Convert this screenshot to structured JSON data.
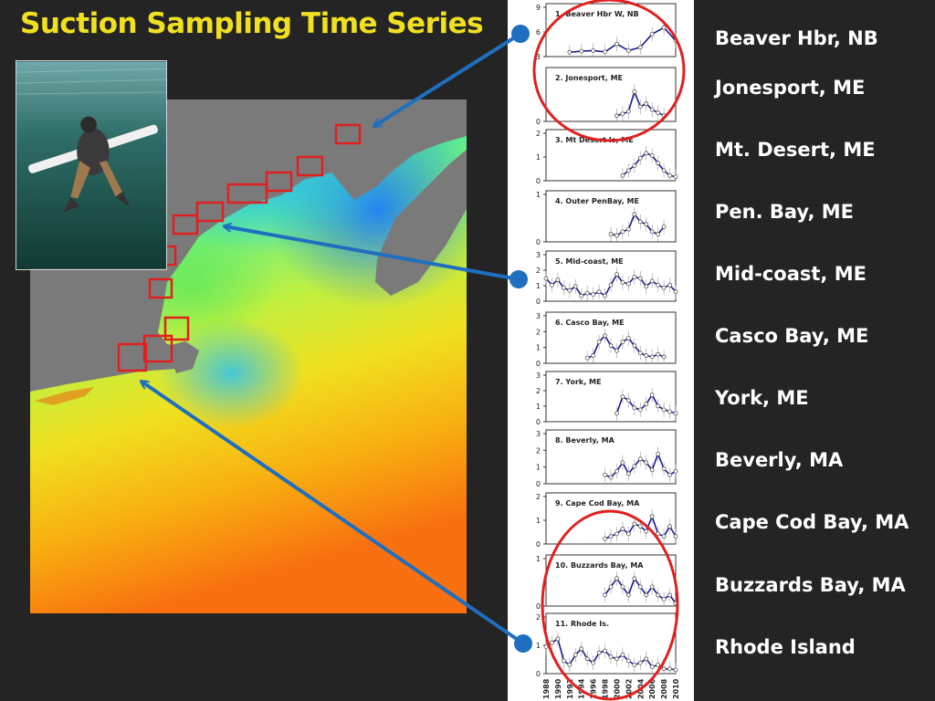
{
  "title": "Suction Sampling Time Series",
  "colors": {
    "background": "#242424",
    "title": "#f0e020",
    "series_line": "#1a1a8c",
    "highlight_ellipse": "#e02020",
    "arrow": "#1f6fc0",
    "site_box": "#e02020"
  },
  "sites": [
    "Beaver Hbr, NB",
    "Jonesport, ME",
    "Mt. Desert, ME",
    "Pen. Bay, ME",
    "Mid-coast, ME",
    "Casco Bay, ME",
    "York, ME",
    "Beverly, MA",
    "Cape Cod Bay, MA",
    "Buzzards Bay, MA",
    "Rhode Island"
  ],
  "chart_data": [
    {
      "type": "line",
      "title": "1. Beaver Hbr W, NB",
      "yticks": [
        "9",
        "6",
        "3"
      ],
      "x": [
        1992,
        1994,
        1996,
        1998,
        2000,
        2002,
        2004,
        2006,
        2008,
        2010
      ],
      "values": [
        0.5,
        0.8,
        1.0,
        0.6,
        3.0,
        1.0,
        2.0,
        6.0,
        8.0,
        4.0
      ]
    },
    {
      "type": "line",
      "title": "2. Jonesport, ME",
      "yticks": [
        "0"
      ],
      "x": [
        2000,
        2001,
        2002,
        2003,
        2004,
        2005,
        2006,
        2007,
        2008
      ],
      "values": [
        0.5,
        0.8,
        1.2,
        4.5,
        2.0,
        2.5,
        1.5,
        1.0,
        0.5
      ]
    },
    {
      "type": "line",
      "title": "3. Mt Desert Is, ME",
      "yticks": [
        "2",
        "1",
        "0"
      ],
      "x": [
        2001,
        2002,
        2003,
        2004,
        2005,
        2006,
        2007,
        2008,
        2009,
        2010
      ],
      "values": [
        0.1,
        0.3,
        0.5,
        0.8,
        1.0,
        0.9,
        0.6,
        0.3,
        0.1,
        0.05
      ]
    },
    {
      "type": "line",
      "title": "4. Outer PenBay, ME",
      "yticks": [
        "1",
        "0"
      ],
      "x": [
        1999,
        2000,
        2001,
        2002,
        2003,
        2004,
        2005,
        2006,
        2007,
        2008
      ],
      "values": [
        0.2,
        0.15,
        0.3,
        0.4,
        1.0,
        0.7,
        0.6,
        0.3,
        0.2,
        0.5
      ]
    },
    {
      "type": "line",
      "title": "5. Mid-coast, ME",
      "yticks": [
        "3",
        "2",
        "1",
        "0"
      ],
      "x": [
        1988,
        1989,
        1990,
        1991,
        1992,
        1993,
        1994,
        1995,
        1996,
        1997,
        1998,
        1999,
        2000,
        2001,
        2002,
        2003,
        2004,
        2005,
        2006,
        2007,
        2008,
        2009,
        2010
      ],
      "values": [
        1.5,
        1.0,
        1.4,
        0.8,
        0.6,
        0.9,
        0.2,
        0.4,
        0.3,
        0.5,
        0.2,
        1.0,
        1.8,
        1.2,
        1.1,
        1.6,
        1.5,
        0.9,
        1.3,
        1.0,
        0.8,
        1.0,
        0.5
      ]
    },
    {
      "type": "line",
      "title": "6. Casco Bay, ME",
      "yticks": [
        "3",
        "2",
        "1",
        "0"
      ],
      "x": [
        1995,
        1996,
        1997,
        1998,
        1999,
        2000,
        2001,
        2002,
        2003,
        2004,
        2005,
        2006,
        2007,
        2008
      ],
      "values": [
        0.2,
        0.4,
        1.5,
        2.0,
        1.2,
        0.8,
        1.5,
        1.8,
        1.2,
        0.6,
        0.4,
        0.3,
        0.5,
        0.3
      ]
    },
    {
      "type": "line",
      "title": "7. York, ME",
      "yticks": [
        "3",
        "2",
        "1",
        "0"
      ],
      "x": [
        2000,
        2001,
        2002,
        2003,
        2004,
        2005,
        2006,
        2007,
        2008,
        2009,
        2010
      ],
      "values": [
        0.3,
        1.2,
        1.0,
        0.6,
        0.5,
        0.8,
        1.3,
        0.7,
        0.5,
        0.4,
        0.3
      ]
    },
    {
      "type": "line",
      "title": "8. Beverly, MA",
      "yticks": [
        "3",
        "2",
        "1",
        "0"
      ],
      "x": [
        1998,
        1999,
        2000,
        2001,
        2002,
        2003,
        2004,
        2005,
        2006,
        2007,
        2008,
        2009,
        2010
      ],
      "values": [
        0.5,
        0.3,
        0.8,
        1.5,
        0.6,
        1.2,
        1.8,
        1.5,
        0.9,
        2.2,
        1.0,
        0.5,
        0.8
      ]
    },
    {
      "type": "line",
      "title": "9. Cape Cod Bay, MA",
      "yticks": [
        "2",
        "1",
        "0"
      ],
      "x": [
        1998,
        1999,
        2000,
        2001,
        2002,
        2003,
        2004,
        2005,
        2006,
        2007,
        2008,
        2009,
        2010
      ],
      "values": [
        0.1,
        0.2,
        0.3,
        0.5,
        0.3,
        0.7,
        0.6,
        0.4,
        1.0,
        0.3,
        0.2,
        0.6,
        0.2
      ]
    },
    {
      "type": "line",
      "title": "10. Buzzards Bay, MA",
      "yticks": [
        "1",
        "0"
      ],
      "x": [
        1998,
        1999,
        2000,
        2001,
        2002,
        2003,
        2004,
        2005,
        2006,
        2007,
        2008,
        2009,
        2010
      ],
      "values": [
        0.1,
        0.2,
        0.3,
        0.2,
        0.1,
        0.3,
        0.2,
        0.1,
        0.2,
        0.1,
        0.05,
        0.1,
        0.0
      ]
    },
    {
      "type": "line",
      "title": "11. Rhode Is.",
      "yticks": [
        "2",
        "1",
        "0"
      ],
      "x": [
        1988,
        1989,
        1990,
        1991,
        1992,
        1993,
        1994,
        1995,
        1996,
        1997,
        1998,
        1999,
        2000,
        2001,
        2002,
        2003,
        2004,
        2005,
        2006,
        2007,
        2008,
        2009,
        2010
      ],
      "values": [
        1.2,
        1.4,
        1.6,
        0.5,
        0.3,
        0.8,
        1.1,
        0.6,
        0.4,
        0.9,
        1.0,
        0.7,
        0.6,
        0.8,
        0.5,
        0.3,
        0.4,
        0.6,
        0.2,
        0.3,
        0.1,
        0.1,
        0.05
      ]
    }
  ],
  "x_axis_labels": [
    "1988",
    "1990",
    "1992",
    "1994",
    "1996",
    "1998",
    "2000",
    "2002",
    "2004",
    "2006",
    "2008",
    "2010"
  ]
}
